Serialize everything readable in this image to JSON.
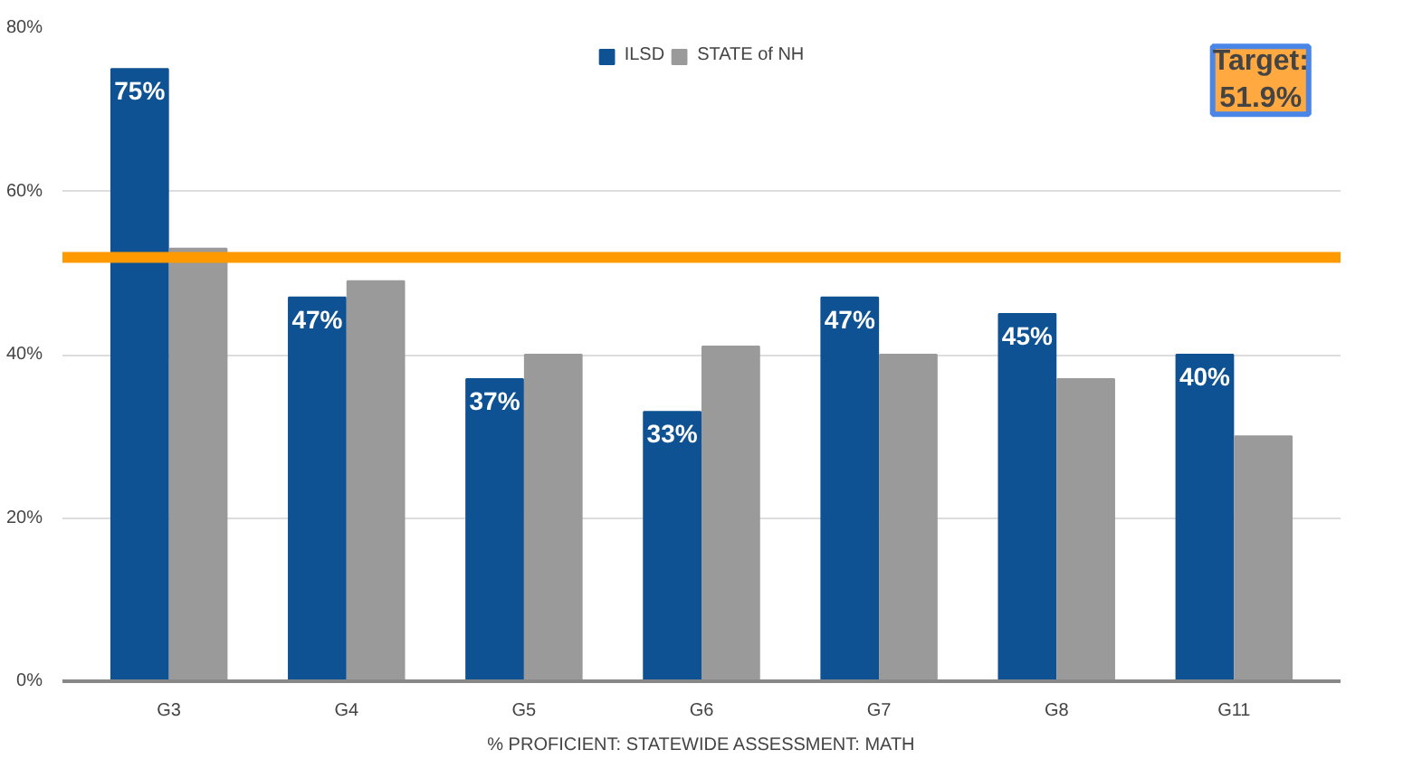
{
  "chart_data": {
    "type": "bar",
    "categories": [
      "G3",
      "G4",
      "G5",
      "G6",
      "G7",
      "G8",
      "G11"
    ],
    "series": [
      {
        "name": "ILSD",
        "color": "#0f5294",
        "values": [
          75,
          47,
          37,
          33,
          47,
          45,
          40
        ],
        "value_labels": [
          "75%",
          "47%",
          "37%",
          "33%",
          "47%",
          "45%",
          "40%"
        ]
      },
      {
        "name": "STATE of NH",
        "color": "#9a9a9a",
        "values": [
          53,
          49,
          40,
          41,
          40,
          37,
          30
        ]
      }
    ],
    "xlabel": "% PROFICIENT: STATEWIDE ASSESSMENT: MATH",
    "ylim": [
      0,
      80
    ],
    "yticks": [
      {
        "value": 0,
        "label": "0%"
      },
      {
        "value": 20,
        "label": "20%"
      },
      {
        "value": 40,
        "label": "40%"
      },
      {
        "value": 60,
        "label": "60%"
      },
      {
        "value": 80,
        "label": "80%"
      }
    ],
    "ref_lines": [
      {
        "axis": "y",
        "value": 51.9,
        "color": "#ff9900"
      }
    ],
    "annotations": [
      "Target:\n51.9%"
    ],
    "grid": "y",
    "legend": "top"
  }
}
